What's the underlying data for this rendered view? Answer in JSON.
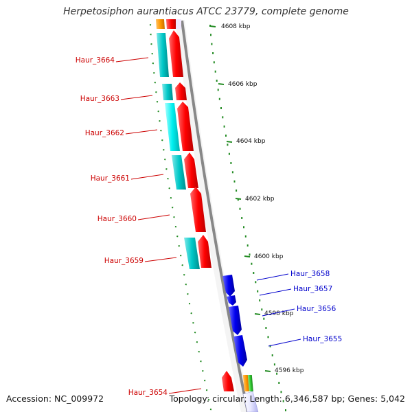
{
  "title": "Herpetosiphon aurantiacus ATCC 23779, complete genome",
  "footer": {
    "accession": "Accession: NC_009972",
    "summary": "Topology: circular; Length: 6,346,587 bp; Genes: 5,042"
  },
  "ticks": [
    "4608 kbp",
    "4606 kbp",
    "4604 kbp",
    "4602 kbp",
    "4600 kbp",
    "4598 kbp",
    "4596 kbp"
  ],
  "genes_left": [
    "Haur_3664",
    "Haur_3663",
    "Haur_3662",
    "Haur_3661",
    "Haur_3660",
    "Haur_3659",
    "Haur_3654"
  ],
  "genes_right": [
    "Haur_3658",
    "Haur_3657",
    "Haur_3656",
    "Haur_3655"
  ],
  "colors": {
    "forward_strand": "#ff0000",
    "reverse_strand": "#0000ee",
    "cyan_track": "#00bfbf",
    "orange_track": "#ff9900",
    "green_track": "#33cc33",
    "backbone": "#888888",
    "tick_marks": "#228b22"
  }
}
